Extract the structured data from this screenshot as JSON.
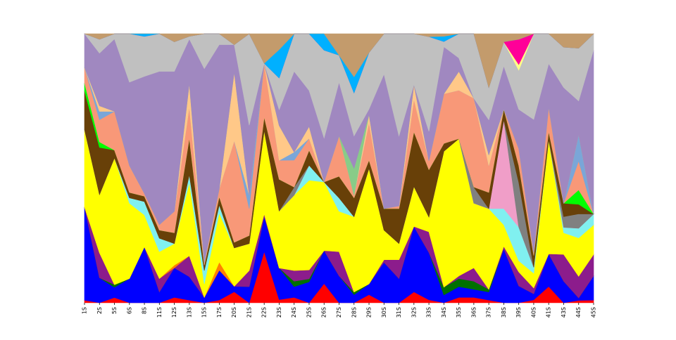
{
  "chart_data": {
    "type": "area",
    "stacked": true,
    "normalized": true,
    "title": "",
    "xlabel": "",
    "ylabel": "",
    "ylim": [
      0,
      100
    ],
    "y_axis_visible": false,
    "grid": false,
    "legend": "none",
    "categories": [
      "1S",
      "2S",
      "5S",
      "6S",
      "8S",
      "11S",
      "12S",
      "13S",
      "15S",
      "17S",
      "20S",
      "21S",
      "22S",
      "23S",
      "24S",
      "25S",
      "26S",
      "27S",
      "28S",
      "29S",
      "30S",
      "31S",
      "32S",
      "33S",
      "34S",
      "35S",
      "36S",
      "37S",
      "38S",
      "39S",
      "40S",
      "41S",
      "43S",
      "44S",
      "45S"
    ],
    "series": [
      {
        "color": "#ff0000",
        "values": [
          1,
          0,
          2,
          0,
          0,
          0,
          2,
          1,
          0,
          1,
          4,
          0,
          19,
          1,
          2,
          0,
          7,
          0,
          0,
          3,
          0,
          0,
          3,
          1,
          0,
          2,
          2,
          1,
          0,
          0,
          1,
          6,
          0,
          1,
          1
        ]
      },
      {
        "color": "#0000ff",
        "values": [
          36,
          9,
          4,
          9,
          21,
          4,
          11,
          9,
          2,
          11,
          2,
          6,
          13,
          10,
          4,
          7,
          12,
          10,
          3,
          4,
          15,
          9,
          18,
          16,
          3,
          4,
          3,
          3,
          20,
          6,
          2,
          12,
          8,
          1,
          9
        ]
      },
      {
        "color": "#007000",
        "values": [
          0,
          0,
          1,
          0,
          0,
          0,
          0,
          0,
          0,
          0,
          0,
          0,
          0,
          0,
          2,
          1,
          0,
          0,
          1,
          0,
          0,
          0,
          0,
          0,
          3,
          3,
          3,
          1,
          0,
          0,
          0,
          0,
          0,
          0,
          0
        ]
      },
      {
        "color": "#8c1c8c",
        "values": [
          0,
          9,
          0,
          0,
          0,
          5,
          0,
          8,
          0,
          0,
          0,
          6,
          1,
          0,
          4,
          3,
          0,
          9,
          0,
          0,
          1,
          7,
          0,
          7,
          0,
          1,
          5,
          0,
          1,
          5,
          2,
          0,
          10,
          9,
          8
        ]
      },
      {
        "color": "#ff8000",
        "values": [
          0,
          0,
          0,
          0,
          0,
          0,
          1,
          0,
          0,
          3,
          0,
          0,
          0,
          0,
          0,
          0,
          0,
          0,
          0,
          0,
          0,
          0,
          0,
          0,
          0,
          0,
          0,
          0,
          0,
          0,
          0,
          0,
          0,
          0,
          0
        ]
      },
      {
        "color": "#ffff00",
        "values": [
          30,
          21,
          49,
          28,
          12,
          10,
          8,
          28,
          5,
          18,
          14,
          10,
          31,
          18,
          28,
          30,
          25,
          15,
          28,
          43,
          11,
          6,
          11,
          5,
          52,
          51,
          24,
          30,
          8,
          4,
          5,
          42,
          8,
          16,
          11
        ]
      },
      {
        "color": "#80f0f0",
        "values": [
          0,
          0,
          0,
          2,
          5,
          5,
          0,
          3,
          5,
          3,
          0,
          0,
          0,
          0,
          0,
          5,
          0,
          5,
          0,
          0,
          0,
          0,
          0,
          0,
          0,
          0,
          0,
          0,
          6,
          12,
          2,
          0,
          2,
          4,
          4
        ]
      },
      {
        "color": "#f09ec8",
        "values": [
          0,
          0,
          0,
          0,
          0,
          0,
          0,
          0,
          0,
          0,
          0,
          0,
          0,
          0,
          0,
          0,
          0,
          0,
          0,
          0,
          0,
          0,
          0,
          0,
          0,
          0,
          0,
          0,
          33,
          0,
          0,
          0,
          0,
          0,
          0
        ]
      },
      {
        "color": "#808080",
        "values": [
          0,
          0,
          0,
          0,
          0,
          0,
          0,
          0,
          0,
          0,
          0,
          0,
          0,
          0,
          3,
          0,
          0,
          0,
          0,
          0,
          0,
          0,
          0,
          0,
          0,
          0,
          6,
          0,
          0,
          16,
          0,
          0,
          4,
          6,
          0
        ]
      },
      {
        "color": "#684008",
        "values": [
          15,
          17,
          3,
          2,
          2,
          3,
          4,
          14,
          2,
          3,
          2,
          3,
          5,
          10,
          0,
          5,
          0,
          8,
          7,
          3,
          8,
          13,
          15,
          16,
          3,
          0,
          0,
          6,
          4,
          6,
          4,
          3,
          5,
          4,
          0
        ]
      },
      {
        "color": "#00ff00",
        "values": [
          3,
          2,
          0,
          0,
          0,
          0,
          0,
          0,
          0,
          0,
          0,
          0,
          0,
          0,
          0,
          0,
          0,
          0,
          0,
          0,
          0,
          0,
          0,
          0,
          0,
          0,
          0,
          0,
          0,
          0,
          0,
          0,
          0,
          6,
          0
        ]
      },
      {
        "color": "#f89878",
        "values": [
          6,
          8,
          15,
          10,
          1,
          2,
          8,
          12,
          1,
          3,
          37,
          10,
          20,
          6,
          10,
          4,
          0,
          15,
          1,
          14,
          0,
          1,
          9,
          3,
          19,
          18,
          33,
          10,
          0,
          6,
          1,
          9,
          0,
          12,
          0
        ]
      },
      {
        "color": "#7aa6d8",
        "values": [
          0,
          3,
          0,
          0,
          0,
          0,
          0,
          0,
          0,
          0,
          0,
          5,
          0,
          0,
          3,
          0,
          0,
          0,
          0,
          0,
          0,
          0,
          0,
          0,
          0,
          0,
          0,
          0,
          0,
          0,
          0,
          0,
          0,
          11,
          0
        ]
      },
      {
        "color": "#ffc888",
        "values": [
          0,
          2,
          0,
          0,
          0,
          0,
          0,
          9,
          0,
          0,
          25,
          0,
          0,
          11,
          0,
          4,
          0,
          0,
          0,
          3,
          0,
          0,
          4,
          0,
          0,
          7,
          0,
          4,
          0,
          0,
          0,
          0,
          0,
          0,
          0
        ]
      },
      {
        "color": "#88cc88",
        "values": [
          0,
          0,
          0,
          0,
          0,
          0,
          0,
          0,
          0,
          0,
          0,
          0,
          0,
          0,
          0,
          0,
          0,
          0,
          10,
          0,
          0,
          0,
          0,
          0,
          0,
          0,
          0,
          0,
          0,
          0,
          0,
          0,
          0,
          0,
          0
        ]
      },
      {
        "color": "#a088c0",
        "values": [
          13,
          19,
          28,
          31,
          44,
          57,
          52,
          17,
          72,
          53,
          10,
          26,
          0,
          5,
          30,
          12,
          16,
          20,
          12,
          2,
          50,
          26,
          0,
          10,
          18,
          5,
          0,
          13,
          16,
          14,
          45,
          16,
          43,
          14,
          61
        ]
      },
      {
        "color": "#c0c0c0",
        "values": [
          0,
          5,
          2,
          18,
          15,
          14,
          11,
          1,
          13,
          4,
          0,
          34,
          0,
          10,
          14,
          19,
          32,
          10,
          16,
          21,
          15,
          38,
          14,
          32,
          2,
          9,
          24,
          12,
          9,
          14,
          29,
          11,
          15,
          22,
          6
        ]
      },
      {
        "color": "#ffff88",
        "values": [
          0,
          0,
          0,
          0,
          0,
          0,
          0,
          0,
          0,
          0,
          0,
          0,
          0,
          0,
          0,
          0,
          0,
          0,
          0,
          0,
          0,
          0,
          0,
          0,
          0,
          0,
          0,
          0,
          0,
          2,
          0,
          0,
          0,
          0,
          0
        ]
      },
      {
        "color": "#ff0098",
        "values": [
          0,
          0,
          0,
          0,
          0,
          0,
          0,
          0,
          0,
          0,
          0,
          0,
          0,
          0,
          0,
          0,
          0,
          0,
          0,
          0,
          0,
          0,
          0,
          0,
          0,
          0,
          0,
          0,
          0,
          9,
          0,
          0,
          0,
          0,
          0
        ]
      },
      {
        "color": "#00b0ff",
        "values": [
          0,
          0,
          0,
          0,
          1,
          0,
          0,
          0,
          0,
          0,
          0,
          0,
          0,
          9,
          0,
          0,
          6,
          0,
          6,
          0,
          0,
          0,
          0,
          0,
          2,
          0,
          0,
          0,
          0,
          0,
          0,
          0,
          0,
          0,
          0
        ]
      },
      {
        "color": "#c39b6c",
        "values": [
          0,
          2,
          0,
          0,
          0,
          0,
          3,
          1,
          0,
          0,
          4,
          0,
          11,
          5,
          0,
          0,
          0,
          8,
          16,
          7,
          0,
          0,
          0,
          1,
          1,
          0,
          0,
          20,
          3,
          2,
          0,
          0,
          5,
          6,
          0
        ]
      }
    ]
  }
}
